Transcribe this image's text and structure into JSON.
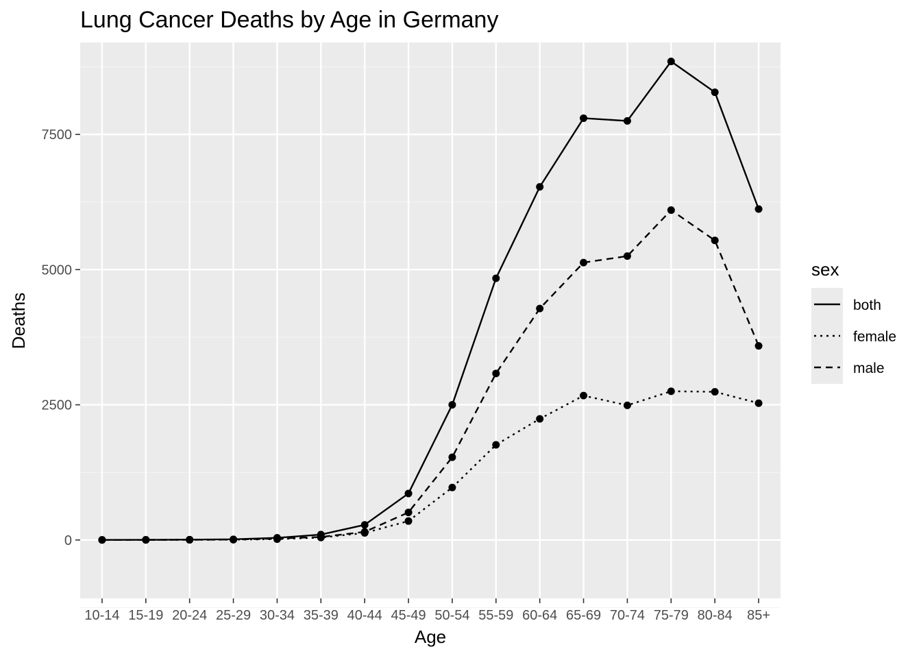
{
  "chart_data": {
    "type": "line",
    "title": "Lung Cancer Deaths by Age in Germany",
    "xlabel": "Age",
    "ylabel": "Deaths",
    "categories": [
      "10-14",
      "15-19",
      "20-24",
      "25-29",
      "30-34",
      "35-39",
      "40-44",
      "45-49",
      "50-54",
      "55-59",
      "60-64",
      "65-69",
      "70-74",
      "75-79",
      "80-84",
      "85+"
    ],
    "ylim": [
      -1080,
      9200
    ],
    "yticks": [
      0,
      2500,
      5000,
      7500
    ],
    "ytick_labels": [
      "0",
      "2500",
      "5000",
      "7500"
    ],
    "grid": true,
    "legend": {
      "title": "sex",
      "position": "right"
    },
    "series": [
      {
        "name": "both",
        "linetype": "solid",
        "values": [
          2,
          3,
          6,
          12,
          40,
          100,
          280,
          860,
          2500,
          4840,
          6530,
          7800,
          7750,
          8850,
          8280,
          6120
        ]
      },
      {
        "name": "female",
        "linetype": "dotted",
        "values": [
          1,
          1,
          3,
          5,
          15,
          45,
          130,
          350,
          970,
          1760,
          2240,
          2670,
          2490,
          2750,
          2740,
          2530
        ]
      },
      {
        "name": "male",
        "linetype": "dashed",
        "values": [
          1,
          2,
          3,
          7,
          25,
          55,
          150,
          510,
          1530,
          3080,
          4280,
          5130,
          5250,
          6100,
          5540,
          3590
        ]
      }
    ],
    "colors": {
      "panel": "#ebebeb",
      "grid_major": "#ffffff",
      "grid_minor": "#f4f4f4",
      "line": "#000000",
      "tick_text": "#4d4d4d"
    }
  }
}
